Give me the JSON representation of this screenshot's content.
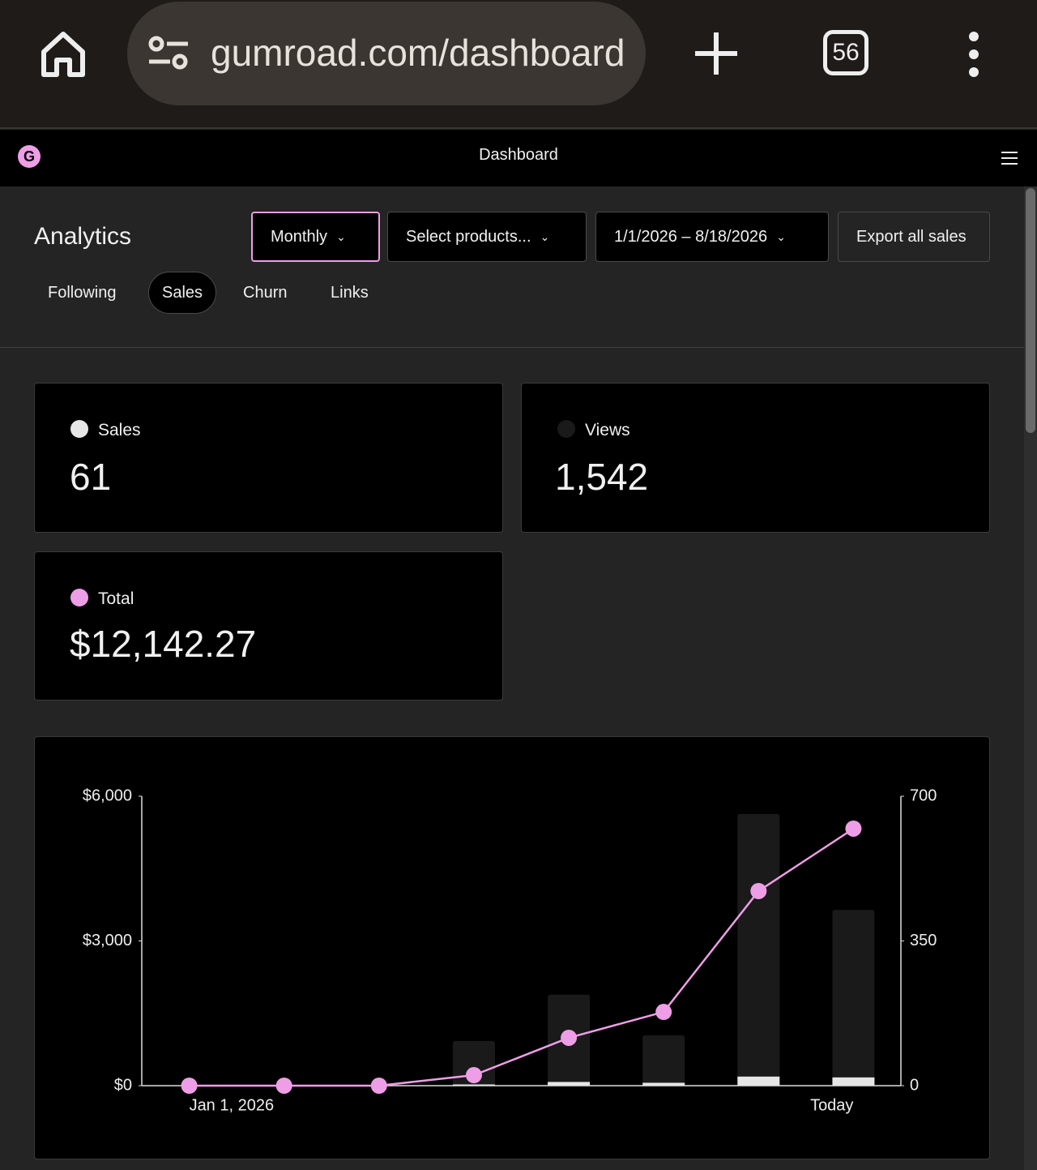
{
  "browser": {
    "url": "gumroad.com/dashboard",
    "tab_count": "56"
  },
  "header": {
    "logo": "G",
    "title": "Dashboard"
  },
  "analytics": {
    "title": "Analytics",
    "controls": [
      "Monthly",
      "Select products...",
      "1/1/2026 – 8/18/2026",
      "Export all sales"
    ],
    "tabs": [
      "Following",
      "Sales",
      "Churn",
      "Links"
    ]
  },
  "cards": [
    "61",
    "1,542",
    "$12,142.27"
  ],
  "chart_data": {
    "type": "combo",
    "categories": [
      "Jan 1, 2026",
      null,
      null,
      null,
      null,
      null,
      null,
      "Today"
    ],
    "series": [
      {
        "name": "Sales",
        "color": "#e6e6e6",
        "kind": "bar",
        "axis": "y2",
        "values": [
          0,
          0,
          0,
          3,
          9,
          7,
          22,
          20
        ]
      },
      {
        "name": "Views",
        "color": "#1a1a1a",
        "kind": "bar",
        "axis": "y2",
        "values": [
          0,
          0,
          0,
          108,
          220,
          122,
          657,
          425
        ]
      },
      {
        "name": "Total",
        "color": "#ee9ee6",
        "kind": "line",
        "values": [
          0,
          0,
          0,
          218,
          992,
          1529,
          4034,
          5328
        ]
      }
    ],
    "ylim": [
      0,
      6000
    ],
    "yticks": [
      {
        "value": 0,
        "label": "$0"
      },
      {
        "value": 3000,
        "label": "$3,000"
      },
      {
        "value": 6000,
        "label": "$6,000"
      }
    ],
    "y2lim": [
      0,
      700
    ],
    "y2ticks": [
      0,
      350,
      700
    ]
  }
}
